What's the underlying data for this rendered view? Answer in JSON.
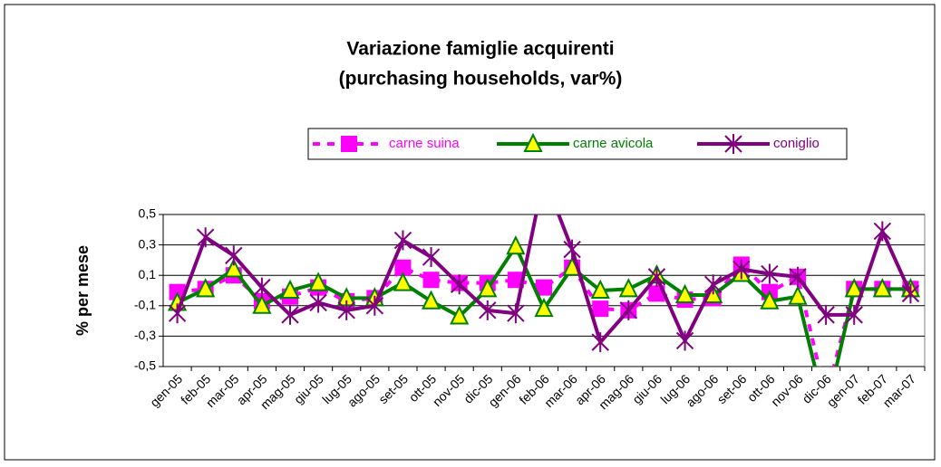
{
  "chart_data": {
    "type": "line",
    "title": "Variazione famiglie acquirenti",
    "subtitle": "(purchasing households, var%)",
    "y_label": "% per mese",
    "categories": [
      "gen-05",
      "feb-05",
      "mar-05",
      "apr-05",
      "mag-05",
      "giu-05",
      "lug-05",
      "ago-05",
      "set-05",
      "ott-05",
      "nov-05",
      "dic-05",
      "gen-06",
      "feb-06",
      "mar-06",
      "apr-06",
      "mag-06",
      "giu-06",
      "lug-06",
      "ago-06",
      "set-06",
      "ott-06",
      "nov-06",
      "dic-06",
      "gen-07",
      "feb-07",
      "mar-07"
    ],
    "series": [
      {
        "name": "carne suina",
        "color": "#ff00ff",
        "style": "dashed",
        "marker": "square",
        "values": [
          -0.01,
          0.01,
          0.1,
          -0.07,
          -0.04,
          0.02,
          -0.07,
          -0.05,
          0.15,
          0.07,
          0.05,
          0.05,
          0.07,
          0.02,
          0.15,
          -0.12,
          -0.13,
          -0.02,
          -0.06,
          -0.05,
          0.17,
          -0.01,
          0.09,
          -0.7,
          0.01,
          0.01,
          0.01
        ]
      },
      {
        "name": "carne avicola",
        "color": "#008000",
        "style": "solid",
        "marker": "triangle",
        "values": [
          -0.08,
          0.01,
          0.14,
          -0.1,
          0.0,
          0.05,
          -0.05,
          -0.05,
          0.05,
          -0.07,
          -0.17,
          0.01,
          0.29,
          -0.12,
          0.15,
          0.0,
          0.01,
          0.1,
          -0.03,
          -0.03,
          0.11,
          -0.07,
          -0.04,
          -0.8,
          0.01,
          0.01,
          0.01
        ]
      },
      {
        "name": "coniglio",
        "color": "#800080",
        "style": "solid",
        "marker": "star",
        "values": [
          -0.15,
          0.35,
          0.23,
          0.02,
          -0.16,
          -0.08,
          -0.13,
          -0.1,
          0.33,
          0.22,
          0.04,
          -0.13,
          -0.15,
          0.75,
          0.27,
          -0.34,
          -0.13,
          0.09,
          -0.33,
          0.04,
          0.14,
          0.11,
          0.09,
          -0.16,
          -0.16,
          0.39,
          -0.02
        ]
      }
    ],
    "ylim": [
      -0.5,
      0.5
    ],
    "yticks": [
      {
        "value": -0.5,
        "label": "-0,5"
      },
      {
        "value": -0.3,
        "label": "-0,3"
      },
      {
        "value": -0.1,
        "label": "-0,1"
      },
      {
        "value": 0.1,
        "label": "0,1"
      },
      {
        "value": 0.3,
        "label": "0,3"
      },
      {
        "value": 0.5,
        "label": "0,5"
      }
    ],
    "grid": true
  }
}
